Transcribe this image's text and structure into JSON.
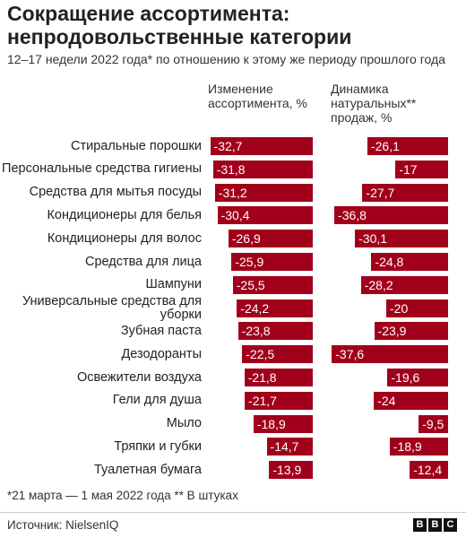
{
  "title": "Сокращение ассортимента: непродовольственные категории",
  "subtitle": "12–17 недели 2022 года* по отношению к этому же периоду прошлого года",
  "footnote": "*21 марта — 1 мая 2022 года   ** В штуках",
  "source": "Источник:  NielsenIQ",
  "logo": [
    "B",
    "B",
    "C"
  ],
  "colors": {
    "bar": "#a1001b",
    "bar_text": "#ffffff"
  },
  "chart_data": {
    "type": "bar",
    "orientation": "horizontal",
    "direction": "negative values extend left from the right edge of each column",
    "categories": [
      "Стиральные порошки",
      "Персональные средства гигиены",
      "Средства для мытья посуды",
      "Кондиционеры для белья",
      "Кондиционеры для волос",
      "Средства для лица",
      "Шампуни",
      "Универсальные средства для уборки",
      "Зубная паста",
      "Дезодоранты",
      "Освежители воздуха",
      "Гели для душа",
      "Мыло",
      "Тряпки и губки",
      "Туалетная бумага"
    ],
    "series": [
      {
        "name": "Изменение ассортимента, %",
        "values": [
          -32.7,
          -31.8,
          -31.2,
          -30.4,
          -26.9,
          -25.9,
          -25.5,
          -24.2,
          -23.8,
          -22.5,
          -21.8,
          -21.7,
          -18.9,
          -14.7,
          -13.9
        ],
        "labels": [
          "-32,7",
          "-31,8",
          "-31,2",
          "-30,4",
          "-26,9",
          "-25,9",
          "-25,5",
          "-24,2",
          "-23,8",
          "-22,5",
          "-21,8",
          "-21,7",
          "-18,9",
          "-14,7",
          "-13,9"
        ]
      },
      {
        "name": "Динамика натуральных** продаж, %",
        "values": [
          -26.1,
          -17,
          -27.7,
          -36.8,
          -30.1,
          -24.8,
          -28.2,
          -20,
          -23.9,
          -37.6,
          -19.6,
          -24,
          -9.5,
          -18.9,
          -12.4
        ],
        "labels": [
          "-26,1",
          "-17",
          "-27,7",
          "-36,8",
          "-30,1",
          "-24,8",
          "-28,2",
          "-20",
          "-23,9",
          "-37,6",
          "-19,6",
          "-24",
          "-9,5",
          "-18,9",
          "-12,4"
        ]
      }
    ]
  }
}
